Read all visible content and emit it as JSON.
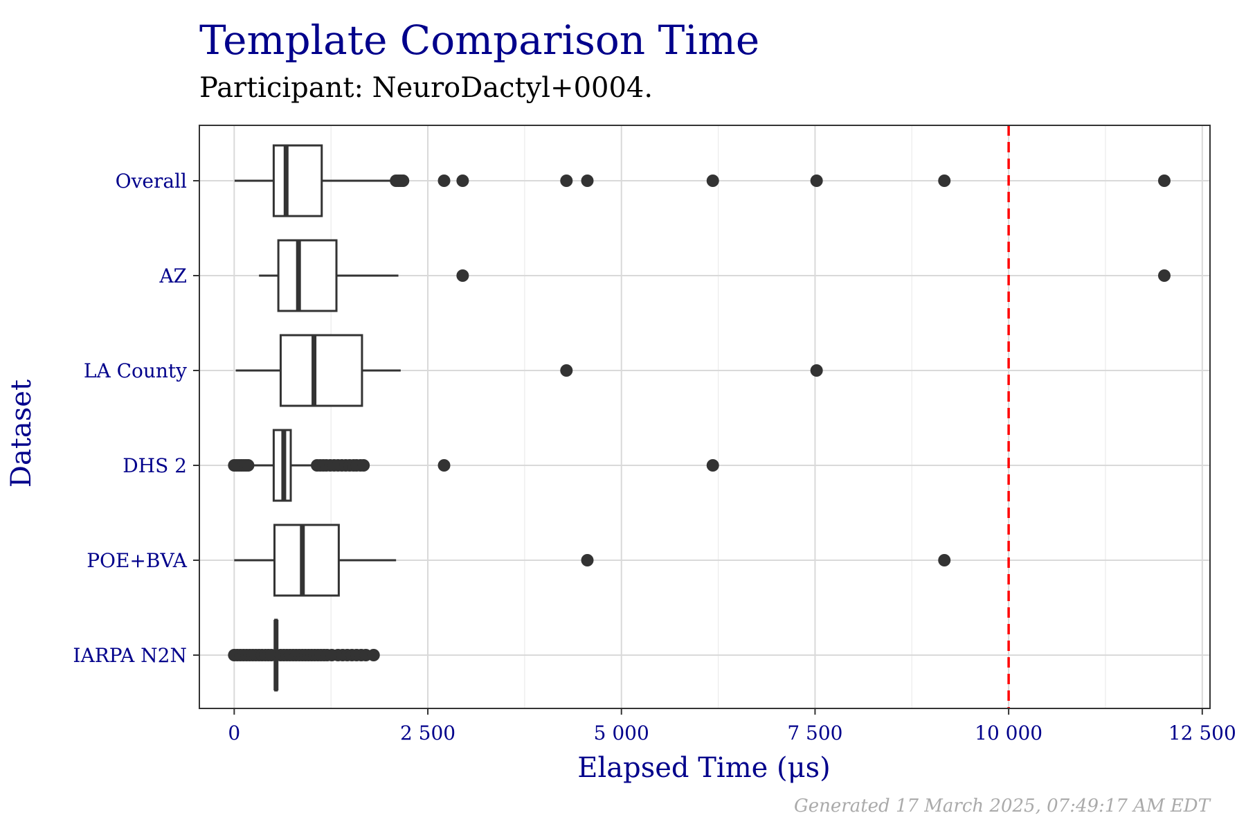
{
  "chart_data": {
    "type": "boxplot",
    "orientation": "horizontal",
    "title": "Template Comparison Time",
    "subtitle": "Participant: NeuroDactyl+0004.",
    "xlabel": "Elapsed Time (μs)",
    "ylabel": "Dataset",
    "caption": "Generated 17 March 2025, 07:49:17 AM EDT",
    "xlim": [
      -450,
      12600
    ],
    "xticks": [
      {
        "value": 0,
        "label": "0"
      },
      {
        "value": 2500,
        "label": "2 500"
      },
      {
        "value": 5000,
        "label": "5 000"
      },
      {
        "value": 7500,
        "label": "7 500"
      },
      {
        "value": 10000,
        "label": "10 000"
      },
      {
        "value": 12500,
        "label": "12 500"
      }
    ],
    "xminor": [
      1250,
      3750,
      6250,
      8750,
      11250
    ],
    "grid": true,
    "reference_line": {
      "value": 10000,
      "color": "#ff0000",
      "style": "dashed"
    },
    "box_color": "#333333",
    "categories": [
      "Overall",
      "AZ",
      "LA County",
      "DHS 2",
      "POE+BVA",
      "IARPA N2N"
    ],
    "boxes": [
      {
        "name": "Overall",
        "whisker_low": 5,
        "q1": 510,
        "median": 670,
        "q3": 1130,
        "whisker_high": 2060,
        "outliers": [
          2090,
          2120,
          2150,
          2180,
          2710,
          2950,
          4290,
          4560,
          6180,
          7520,
          9170,
          12010
        ]
      },
      {
        "name": "AZ",
        "whisker_low": 320,
        "q1": 570,
        "median": 830,
        "q3": 1320,
        "whisker_high": 2120,
        "outliers": [
          2950,
          12010
        ]
      },
      {
        "name": "LA County",
        "whisker_low": 20,
        "q1": 600,
        "median": 1030,
        "q3": 1650,
        "whisker_high": 2150,
        "outliers": [
          4290,
          7520
        ]
      },
      {
        "name": "DHS 2",
        "whisker_low": 190,
        "q1": 510,
        "median": 640,
        "q3": 730,
        "whisker_high": 1050,
        "outliers": [
          0,
          30,
          60,
          90,
          120,
          150,
          180,
          1070,
          1110,
          1150,
          1190,
          1240,
          1290,
          1340,
          1390,
          1440,
          1490,
          1540,
          1580,
          1630,
          1670,
          2710,
          6180
        ]
      },
      {
        "name": "POE+BVA",
        "whisker_low": 0,
        "q1": 520,
        "median": 880,
        "q3": 1350,
        "whisker_high": 2090,
        "outliers": [
          4560,
          9170
        ]
      },
      {
        "name": "IARPA N2N",
        "whisker_low": 530,
        "q1": 530,
        "median": 540,
        "q3": 550,
        "whisker_high": 560,
        "outliers": [
          0,
          40,
          80,
          120,
          160,
          200,
          240,
          280,
          320,
          360,
          400,
          440,
          480,
          600,
          640,
          680,
          720,
          760,
          800,
          840,
          880,
          920,
          960,
          1000,
          1040,
          1080,
          1120,
          1160,
          1200,
          1260,
          1340,
          1400,
          1460,
          1520,
          1580,
          1640,
          1700,
          1800
        ]
      }
    ]
  }
}
